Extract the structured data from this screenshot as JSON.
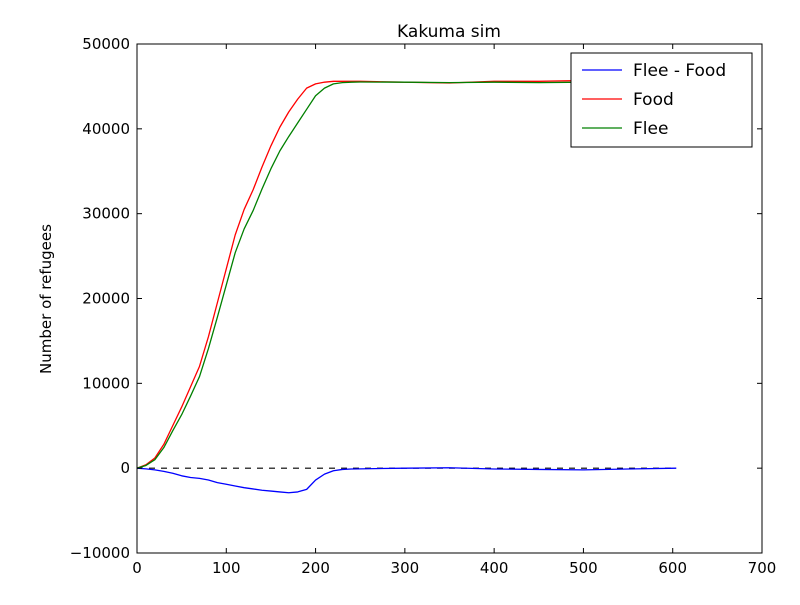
{
  "chart_data": {
    "type": "line",
    "title": "Kakuma sim",
    "xlabel": "",
    "ylabel": "Number of refugees",
    "xlim": [
      0,
      700
    ],
    "ylim": [
      -10000,
      50000
    ],
    "xticks": [
      0,
      100,
      200,
      300,
      400,
      500,
      600,
      700
    ],
    "yticks": [
      -10000,
      0,
      10000,
      20000,
      30000,
      40000,
      50000
    ],
    "xtick_labels": [
      "0",
      "100",
      "200",
      "300",
      "400",
      "500",
      "600",
      "700"
    ],
    "ytick_labels": [
      "−10000",
      "0",
      "10000",
      "20000",
      "30000",
      "40000",
      "50000"
    ],
    "grid": false,
    "legend_position": "top-right",
    "reference_line": {
      "y": 0,
      "style": "dashed",
      "color": "#000000"
    },
    "x": [
      0,
      10,
      20,
      30,
      40,
      50,
      60,
      70,
      80,
      90,
      100,
      110,
      120,
      130,
      140,
      150,
      160,
      170,
      180,
      190,
      200,
      210,
      220,
      230,
      240,
      250,
      300,
      350,
      400,
      450,
      500,
      550,
      604
    ],
    "series": [
      {
        "name": "Flee - Food",
        "color": "#0000ff",
        "values": [
          0,
          -80,
          -200,
          -380,
          -600,
          -900,
          -1100,
          -1200,
          -1400,
          -1700,
          -1900,
          -2100,
          -2300,
          -2450,
          -2600,
          -2700,
          -2800,
          -2900,
          -2800,
          -2500,
          -1400,
          -700,
          -300,
          -150,
          -100,
          -80,
          0,
          50,
          -100,
          -150,
          -200,
          -100,
          0
        ]
      },
      {
        "name": "Food",
        "color": "#ff0000",
        "values": [
          0,
          400,
          1200,
          2800,
          5000,
          7200,
          9600,
          12000,
          15500,
          19500,
          23500,
          27500,
          30500,
          32800,
          35500,
          38000,
          40200,
          42000,
          43500,
          44800,
          45300,
          45500,
          45600,
          45600,
          45600,
          45600,
          45500,
          45400,
          45600,
          45600,
          45700,
          45700,
          45800
        ]
      },
      {
        "name": "Flee",
        "color": "#008000",
        "values": [
          0,
          320,
          1000,
          2420,
          4400,
          6300,
          8500,
          10800,
          14100,
          17800,
          21600,
          25400,
          28200,
          30350,
          32900,
          35300,
          37400,
          39100,
          40700,
          42300,
          43900,
          44800,
          45300,
          45450,
          45500,
          45520,
          45500,
          45450,
          45500,
          45450,
          45500,
          45600,
          45800
        ]
      }
    ]
  }
}
